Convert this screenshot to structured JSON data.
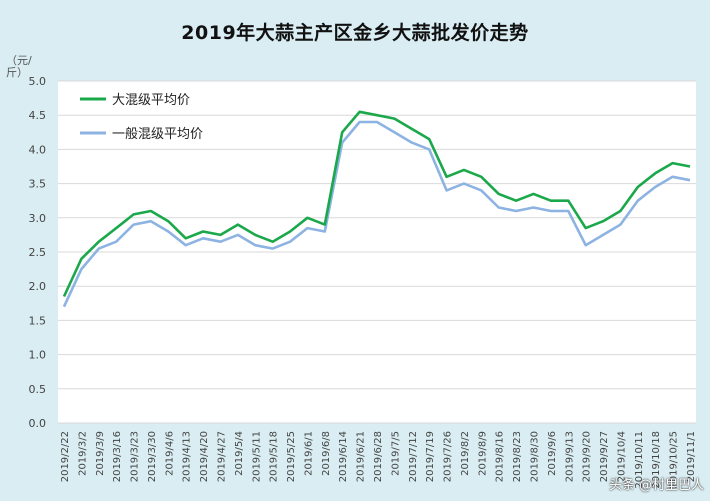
{
  "chart_data": {
    "type": "line",
    "title": "2019年大蒜主产区金乡大蒜批发价走势",
    "ylabel": "（元/斤）",
    "ylim": [
      0,
      5
    ],
    "yticks": [
      "0.0",
      "0.5",
      "1.0",
      "1.5",
      "2.0",
      "2.5",
      "3.0",
      "3.5",
      "4.0",
      "4.5",
      "5.0"
    ],
    "x": [
      "2019/2/22",
      "2019/3/2",
      "2019/3/9",
      "2019/3/16",
      "2019/3/23",
      "2019/3/30",
      "2019/4/6",
      "2019/4/13",
      "2019/4/20",
      "2019/4/27",
      "2019/5/4",
      "2019/5/11",
      "2019/5/18",
      "2019/5/25",
      "2019/6/1",
      "2019/6/8",
      "2019/6/14",
      "2019/6/21",
      "2019/6/28",
      "2019/7/5",
      "2019/7/12",
      "2019/7/19",
      "2019/7/26",
      "2019/8/2",
      "2019/8/9",
      "2019/8/16",
      "2019/8/23",
      "2019/8/30",
      "2019/9/6",
      "2019/9/13",
      "2019/9/20",
      "2019/9/27",
      "2019/10/4",
      "2019/10/11",
      "2019/10/18",
      "2019/10/25",
      "2019/11/1"
    ],
    "series": [
      {
        "name": "大混级平均价",
        "color": "#1aa84a",
        "values": [
          1.85,
          2.4,
          2.65,
          2.85,
          3.05,
          3.1,
          2.95,
          2.7,
          2.8,
          2.75,
          2.9,
          2.75,
          2.65,
          2.8,
          3.0,
          2.9,
          4.25,
          4.55,
          4.5,
          4.45,
          4.3,
          4.15,
          3.6,
          3.7,
          3.6,
          3.35,
          3.25,
          3.35,
          3.25,
          3.25,
          2.85,
          2.95,
          3.1,
          3.45,
          3.65,
          3.8,
          3.75
        ]
      },
      {
        "name": "一般混级平均价",
        "color": "#8db3e2",
        "values": [
          1.7,
          2.25,
          2.55,
          2.65,
          2.9,
          2.95,
          2.8,
          2.6,
          2.7,
          2.65,
          2.75,
          2.6,
          2.55,
          2.65,
          2.85,
          2.8,
          4.1,
          4.4,
          4.4,
          4.25,
          4.1,
          4.0,
          3.4,
          3.5,
          3.4,
          3.15,
          3.1,
          3.15,
          3.1,
          3.1,
          2.6,
          2.75,
          2.9,
          3.25,
          3.45,
          3.6,
          3.55
        ]
      }
    ],
    "grid": true,
    "legend": "top-left"
  },
  "watermark": "头条 @村里巴人"
}
